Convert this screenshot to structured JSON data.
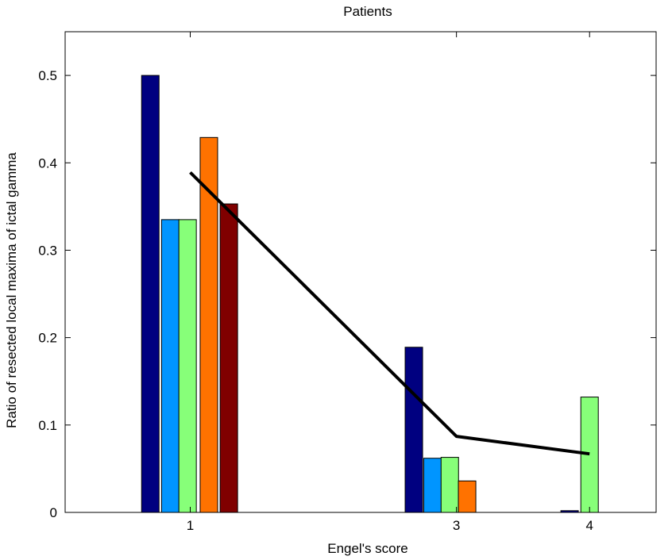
{
  "chart_data": {
    "type": "bar",
    "title": "Patients",
    "xlabel": "Engel's score",
    "ylabel": "Ratio of resected local maxima of ictal gamma",
    "xlim": [
      0.06,
      4.5
    ],
    "ylim": [
      0,
      0.55
    ],
    "grid": false,
    "x_ticks": [
      1,
      3,
      4
    ],
    "y_ticks": [
      0,
      0.1,
      0.2,
      0.3,
      0.4,
      0.5
    ],
    "y_tick_labels": [
      "0",
      "0.1",
      "0.2",
      "0.3",
      "0.4",
      "0.5"
    ],
    "groups": [
      {
        "x": 1,
        "bars": [
          {
            "x": 0.7,
            "value": 0.5,
            "color": "#000080"
          },
          {
            "x": 0.85,
            "value": 0.335,
            "color": "#0095ff"
          },
          {
            "x": 0.98,
            "value": 0.335,
            "color": "#87ff79"
          },
          {
            "x": 1.14,
            "value": 0.429,
            "color": "#ff7200"
          },
          {
            "x": 1.29,
            "value": 0.353,
            "color": "#800000"
          }
        ]
      },
      {
        "x": 3,
        "bars": [
          {
            "x": 2.68,
            "value": 0.189,
            "color": "#000080"
          },
          {
            "x": 2.82,
            "value": 0.062,
            "color": "#0095ff"
          },
          {
            "x": 2.95,
            "value": 0.063,
            "color": "#87ff79"
          },
          {
            "x": 3.08,
            "value": 0.036,
            "color": "#ff7200"
          }
        ]
      },
      {
        "x": 4,
        "bars": [
          {
            "x": 3.85,
            "value": 0.002,
            "color": "#000080"
          },
          {
            "x": 4.0,
            "value": 0.132,
            "color": "#87ff79"
          }
        ]
      }
    ],
    "line": {
      "x": [
        1,
        3,
        4
      ],
      "y": [
        0.389,
        0.087,
        0.067
      ],
      "color": "#000000"
    }
  }
}
